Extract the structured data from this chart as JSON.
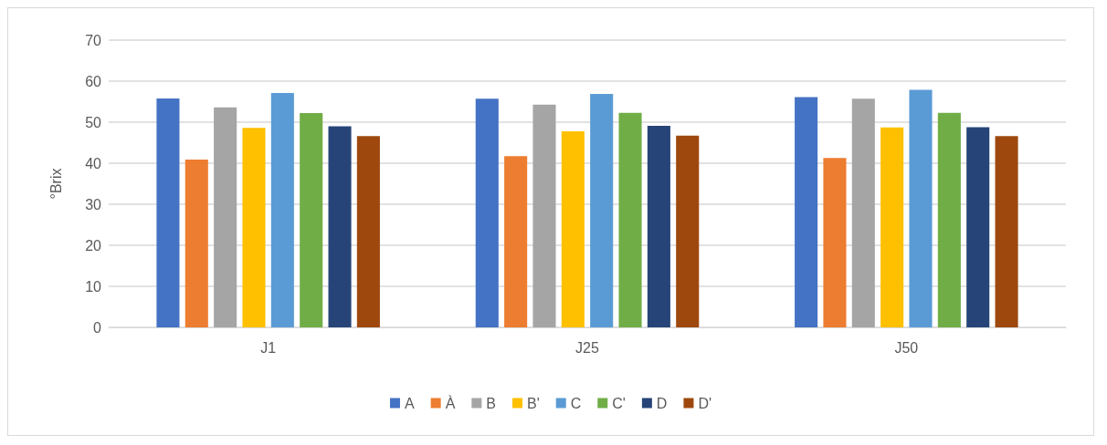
{
  "chart_data": {
    "type": "bar",
    "ylabel": "°Brix",
    "categories": [
      "J1",
      "J25",
      "J50"
    ],
    "ylim": [
      0,
      70
    ],
    "yticks": [
      0,
      10,
      20,
      30,
      40,
      50,
      60,
      70
    ],
    "grid": "y",
    "legend": "bottom",
    "series": [
      {
        "name": "A",
        "color": "#4472c4",
        "values": [
          55.8,
          55.7,
          56.1
        ]
      },
      {
        "name": "À",
        "color": "#ed7d31",
        "values": [
          40.9,
          41.7,
          41.3
        ]
      },
      {
        "name": "B",
        "color": "#a5a5a5",
        "values": [
          53.6,
          54.3,
          55.7
        ]
      },
      {
        "name": "B'",
        "color": "#ffc000",
        "values": [
          48.6,
          47.8,
          48.7
        ]
      },
      {
        "name": "C",
        "color": "#5b9bd5",
        "values": [
          57.1,
          56.9,
          57.9
        ]
      },
      {
        "name": "C'",
        "color": "#70ad47",
        "values": [
          52.2,
          52.3,
          52.3
        ]
      },
      {
        "name": "D",
        "color": "#264478",
        "values": [
          49.0,
          49.1,
          48.8
        ]
      },
      {
        "name": "D'",
        "color": "#9e480e",
        "values": [
          46.6,
          46.7,
          46.6
        ]
      }
    ]
  }
}
